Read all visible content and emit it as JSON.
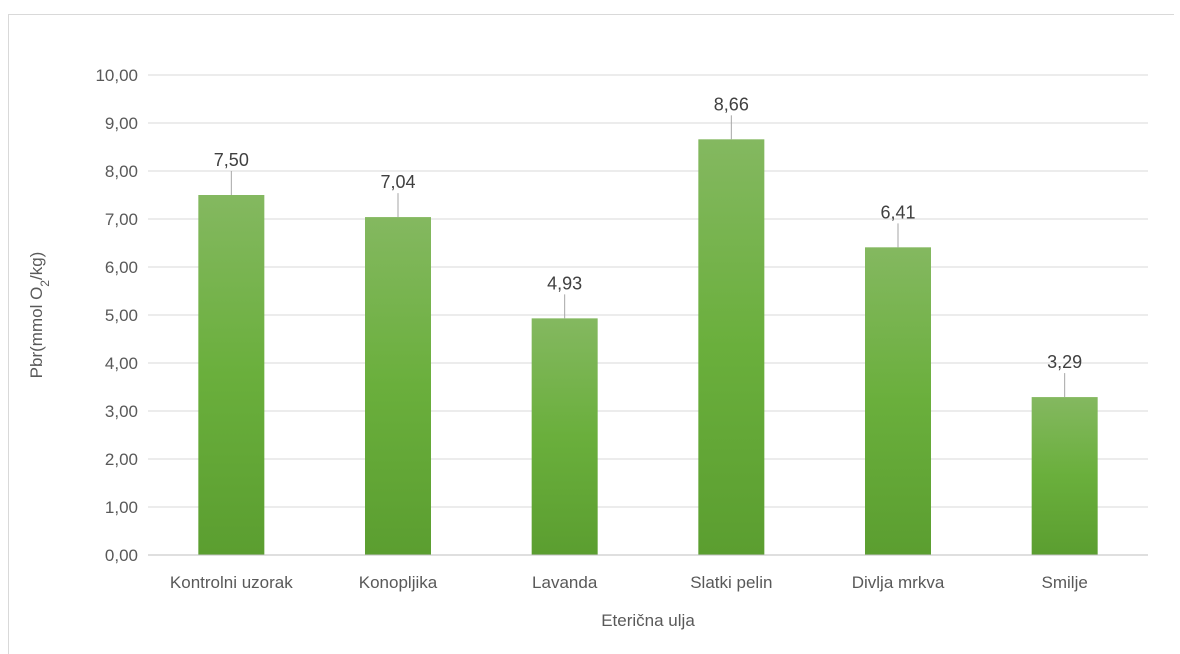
{
  "chart_data": {
    "type": "bar",
    "title": "",
    "xlabel": "Eterična ulja",
    "ylabel": {
      "prefix": "Pbr(mmol O",
      "sub": "2",
      "suffix": "/kg)"
    },
    "ylim": [
      0,
      10
    ],
    "yticks": [
      "0,00",
      "1,00",
      "2,00",
      "3,00",
      "4,00",
      "5,00",
      "6,00",
      "7,00",
      "8,00",
      "9,00",
      "10,00"
    ],
    "categories": [
      "Kontrolni uzorak",
      "Konopljika",
      "Lavanda",
      "Slatki pelin",
      "Divlja mrkva",
      "Smilje"
    ],
    "values": [
      7.5,
      7.04,
      4.93,
      8.66,
      6.41,
      3.29
    ],
    "data_labels": [
      "7,50",
      "7,04",
      "4,93",
      "8,66",
      "6,41",
      "3,29"
    ],
    "grid": true,
    "legend": "none",
    "colors": {
      "bar_top": "#84b860",
      "bar_mid": "#6aaf3c",
      "bar_bottom": "#5b9e30",
      "grid": "#d9d9d9",
      "axis": "#bfbfbf",
      "leader": "#a6a6a6"
    }
  }
}
